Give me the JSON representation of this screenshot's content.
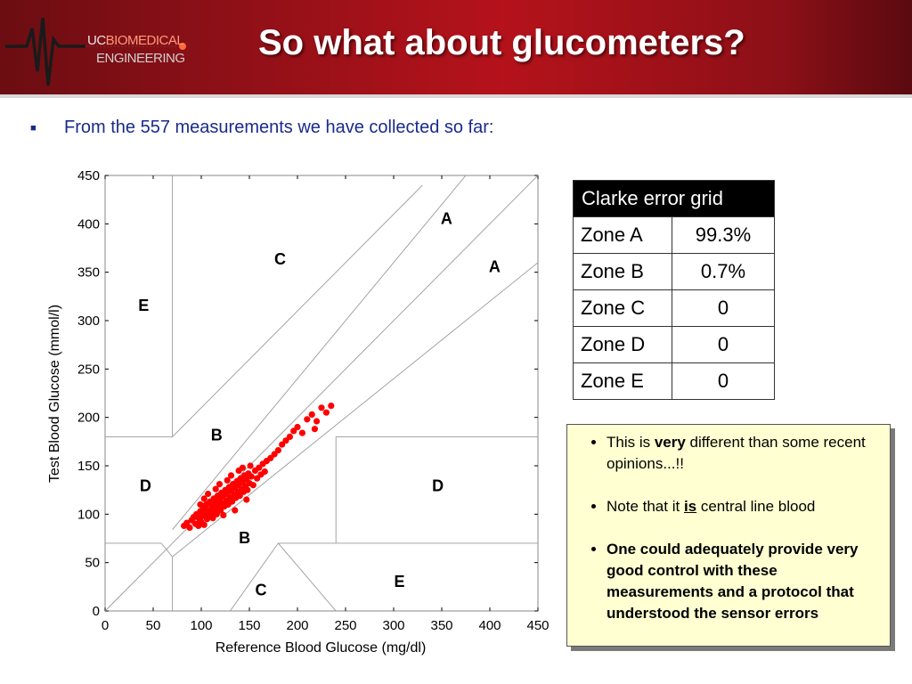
{
  "slide": {
    "title": "So what about glucometers?",
    "logo": {
      "line1_prefix": "UC",
      "line1_suffix": "BIOMEDICAL",
      "line2": "ENGINEERING"
    },
    "intro_bullet": "From the 557 measurements we have collected so far:"
  },
  "colors": {
    "header_red": "#b5121b",
    "points": "#ff0000",
    "intro_text": "#1a2a8c",
    "note_bg": "#ffffd2"
  },
  "error_table": {
    "header": "Clarke error grid",
    "rows": [
      {
        "zone": "Zone A",
        "value": "99.3%"
      },
      {
        "zone": "Zone B",
        "value": "0.7%"
      },
      {
        "zone": "Zone C",
        "value": "0"
      },
      {
        "zone": "Zone D",
        "value": "0"
      },
      {
        "zone": "Zone E",
        "value": "0"
      }
    ]
  },
  "notes": {
    "item1_prefix": "This is ",
    "item1_bold": "very",
    "item1_suffix": " different than some recent opinions...!!",
    "item2_prefix": "Note that it ",
    "item2_underline": "is",
    "item2_suffix": " central line blood",
    "item3": "One could adequately provide very good control with these measurements and a protocol that understood the sensor errors"
  },
  "chart_data": {
    "type": "scatter",
    "xlabel": "Reference Blood Glucose (mg/dl)",
    "ylabel": "Test Blood Glucose (mmol/l)",
    "xlim": [
      0,
      450
    ],
    "ylim": [
      0,
      450
    ],
    "xticks": [
      "0",
      "50",
      "100",
      "150",
      "200",
      "250",
      "300",
      "350",
      "400",
      "450"
    ],
    "yticks": [
      "0",
      "50",
      "100",
      "150",
      "200",
      "250",
      "300",
      "350",
      "400",
      "450"
    ],
    "grid": false,
    "zone_lines": [
      [
        [
          0,
          0
        ],
        [
          450,
          450
        ]
      ],
      [
        [
          70,
          84
        ],
        [
          450,
          540
        ]
      ],
      [
        [
          58.33,
          70
        ],
        [
          70,
          56
        ],
        [
          450,
          360
        ]
      ],
      [
        [
          70,
          180
        ],
        [
          330,
          440
        ]
      ],
      [
        [
          180,
          70
        ],
        [
          240,
          0
        ]
      ],
      [
        [
          130,
          0
        ],
        [
          180,
          70
        ],
        [
          450,
          70
        ]
      ],
      [
        [
          70,
          0
        ],
        [
          70,
          56
        ]
      ],
      [
        [
          70,
          180
        ],
        [
          70,
          450
        ]
      ],
      [
        [
          0,
          180
        ],
        [
          70,
          180
        ]
      ],
      [
        [
          0,
          70
        ],
        [
          58.33,
          70
        ]
      ],
      [
        [
          240,
          180
        ],
        [
          450,
          180
        ]
      ],
      [
        [
          240,
          70
        ],
        [
          240,
          180
        ]
      ]
    ],
    "zone_labels": [
      {
        "label": "A",
        "x": 355,
        "y": 400
      },
      {
        "label": "A",
        "x": 405,
        "y": 350
      },
      {
        "label": "C",
        "x": 182,
        "y": 358
      },
      {
        "label": "E",
        "x": 40,
        "y": 310
      },
      {
        "label": "B",
        "x": 116,
        "y": 176
      },
      {
        "label": "D",
        "x": 42,
        "y": 124
      },
      {
        "label": "D",
        "x": 346,
        "y": 124
      },
      {
        "label": "B",
        "x": 145,
        "y": 70
      },
      {
        "label": "E",
        "x": 306,
        "y": 25
      },
      {
        "label": "C",
        "x": 162,
        "y": 16
      }
    ],
    "series": [
      {
        "points": [
          [
            82,
            88
          ],
          [
            85,
            91
          ],
          [
            88,
            86
          ],
          [
            90,
            94
          ],
          [
            92,
            97
          ],
          [
            94,
            90
          ],
          [
            95,
            100
          ],
          [
            97,
            88
          ],
          [
            98,
            95
          ],
          [
            99,
            103
          ],
          [
            100,
            92
          ],
          [
            101,
            98
          ],
          [
            102,
            106
          ],
          [
            103,
            89
          ],
          [
            104,
            101
          ],
          [
            105,
            110
          ],
          [
            106,
            95
          ],
          [
            107,
            104
          ],
          [
            108,
            99
          ],
          [
            109,
            113
          ],
          [
            110,
            102
          ],
          [
            111,
            108
          ],
          [
            112,
            96
          ],
          [
            113,
            116
          ],
          [
            114,
            105
          ],
          [
            115,
            111
          ],
          [
            116,
            100
          ],
          [
            117,
            119
          ],
          [
            118,
            108
          ],
          [
            119,
            114
          ],
          [
            120,
            104
          ],
          [
            121,
            122
          ],
          [
            122,
            111
          ],
          [
            123,
            118
          ],
          [
            124,
            108
          ],
          [
            125,
            125
          ],
          [
            126,
            114
          ],
          [
            127,
            121
          ],
          [
            128,
            110
          ],
          [
            129,
            128
          ],
          [
            130,
            117
          ],
          [
            131,
            124
          ],
          [
            132,
            113
          ],
          [
            133,
            131
          ],
          [
            134,
            120
          ],
          [
            135,
            127
          ],
          [
            136,
            117
          ],
          [
            137,
            134
          ],
          [
            138,
            123
          ],
          [
            139,
            130
          ],
          [
            140,
            119
          ],
          [
            141,
            137
          ],
          [
            142,
            126
          ],
          [
            143,
            133
          ],
          [
            144,
            123
          ],
          [
            145,
            140
          ],
          [
            146,
            129
          ],
          [
            147,
            136
          ],
          [
            148,
            125
          ],
          [
            149,
            142
          ],
          [
            150,
            132
          ],
          [
            152,
            139
          ],
          [
            154,
            130
          ],
          [
            156,
            145
          ],
          [
            158,
            137
          ],
          [
            160,
            148
          ],
          [
            162,
            141
          ],
          [
            164,
            152
          ],
          [
            166,
            144
          ],
          [
            168,
            155
          ],
          [
            172,
            158
          ],
          [
            176,
            162
          ],
          [
            180,
            166
          ],
          [
            184,
            172
          ],
          [
            188,
            176
          ],
          [
            192,
            180
          ],
          [
            196,
            186
          ],
          [
            200,
            190
          ],
          [
            205,
            184
          ],
          [
            210,
            198
          ],
          [
            215,
            203
          ],
          [
            218,
            188
          ],
          [
            220,
            196
          ],
          [
            225,
            210
          ],
          [
            230,
            205
          ],
          [
            235,
            212
          ],
          [
            99,
            110
          ],
          [
            103,
            116
          ],
          [
            107,
            121
          ],
          [
            111,
            100
          ],
          [
            115,
            126
          ],
          [
            119,
            131
          ],
          [
            123,
            99
          ],
          [
            127,
            135
          ],
          [
            131,
            140
          ],
          [
            135,
            104
          ],
          [
            139,
            145
          ],
          [
            143,
            148
          ],
          [
            147,
            115
          ],
          [
            151,
            150
          ]
        ]
      }
    ]
  }
}
